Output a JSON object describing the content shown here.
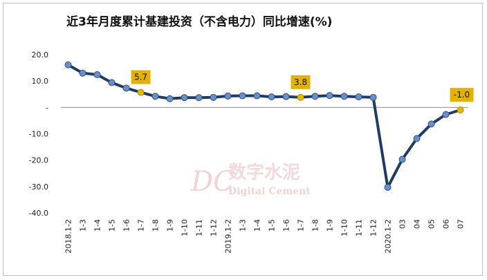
{
  "chart_data": {
    "type": "line",
    "title": "近3年月度累计基建投资（不含电力）同比增速(%)",
    "xlabel": "",
    "ylabel": "",
    "ylim": [
      -40,
      20
    ],
    "yticks": [
      20,
      10,
      0,
      -10,
      -20,
      -30,
      -40
    ],
    "ytick_labels": [
      "20.0",
      "10.0",
      "-",
      "-10.0",
      "-20.0",
      "-30.0",
      "-40.0"
    ],
    "grid": false,
    "categories": [
      "2018.1-2",
      "1-3",
      "1-4",
      "1-5",
      "1-6",
      "1-7",
      "1-8",
      "1-9",
      "1-10",
      "1-11",
      "1-12",
      "2019.1-2",
      "1-3",
      "1-4",
      "1-5",
      "1-6",
      "1-7",
      "1-8",
      "1-9",
      "1-10",
      "1-11",
      "1-12",
      "2020.1-2",
      "03",
      "04",
      "05",
      "06",
      "07"
    ],
    "series": [
      {
        "values": [
          16.1,
          13.0,
          12.4,
          9.4,
          7.3,
          5.7,
          4.2,
          3.3,
          3.7,
          3.7,
          3.8,
          4.3,
          4.4,
          4.4,
          4.0,
          4.1,
          3.8,
          4.2,
          4.5,
          4.2,
          4.0,
          3.8,
          -30.3,
          -19.7,
          -11.8,
          -6.3,
          -2.7,
          -1.0
        ],
        "color": "#1f3b63"
      }
    ],
    "highlighted_points": [
      {
        "index": 5,
        "label": "5.7"
      },
      {
        "index": 16,
        "label": "3.8"
      },
      {
        "index": 27,
        "label": "-1.0"
      }
    ],
    "marker_color": "#6b8fc4",
    "highlight_marker_color": "#e6b800",
    "label_box_color": "#e3b100"
  },
  "watermark": {
    "logo_letters": "DC",
    "cn": "数字水泥",
    "en": "Digital Cement"
  }
}
